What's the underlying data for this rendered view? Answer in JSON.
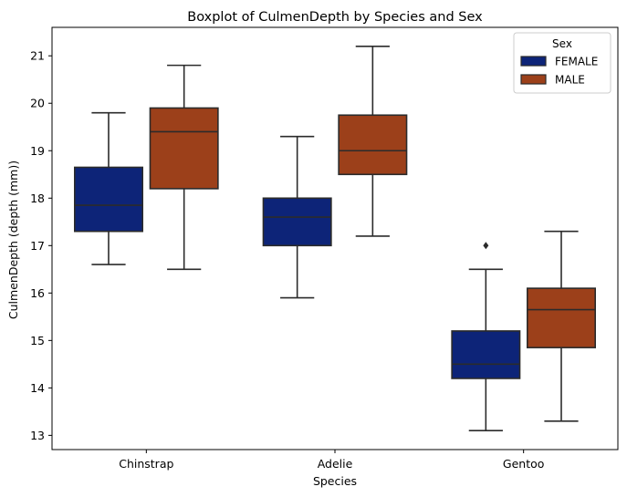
{
  "chart_data": {
    "type": "boxplot",
    "title": "Boxplot of CulmenDepth by Species and Sex",
    "xlabel": "Species",
    "ylabel": "CulmenDepth (depth (mm))",
    "categories": [
      "Chinstrap",
      "Adelie",
      "Gentoo"
    ],
    "ylim": [
      12.7,
      21.6
    ],
    "yticks": [
      13,
      14,
      15,
      16,
      17,
      18,
      19,
      20,
      21
    ],
    "grid": false,
    "legend": {
      "title": "Sex",
      "placement": "top-right"
    },
    "series": [
      {
        "name": "FEMALE",
        "color": "#0d2478",
        "boxes": [
          {
            "category": "Chinstrap",
            "whisker_low": 16.6,
            "q1": 17.3,
            "median": 17.85,
            "q3": 18.65,
            "whisker_high": 19.8,
            "outliers": []
          },
          {
            "category": "Adelie",
            "whisker_low": 15.9,
            "q1": 17.0,
            "median": 17.6,
            "q3": 18.0,
            "whisker_high": 19.3,
            "outliers": []
          },
          {
            "category": "Gentoo",
            "whisker_low": 13.1,
            "q1": 14.2,
            "median": 14.5,
            "q3": 15.2,
            "whisker_high": 16.5,
            "outliers": [
              17.0
            ]
          }
        ]
      },
      {
        "name": "MALE",
        "color": "#9c401a",
        "boxes": [
          {
            "category": "Chinstrap",
            "whisker_low": 16.5,
            "q1": 18.2,
            "median": 19.4,
            "q3": 19.9,
            "whisker_high": 20.8,
            "outliers": []
          },
          {
            "category": "Adelie",
            "whisker_low": 17.2,
            "q1": 18.5,
            "median": 19.0,
            "q3": 19.75,
            "whisker_high": 21.2,
            "outliers": []
          },
          {
            "category": "Gentoo",
            "whisker_low": 13.3,
            "q1": 14.85,
            "median": 15.65,
            "q3": 16.1,
            "whisker_high": 17.3,
            "outliers": []
          }
        ]
      }
    ]
  }
}
